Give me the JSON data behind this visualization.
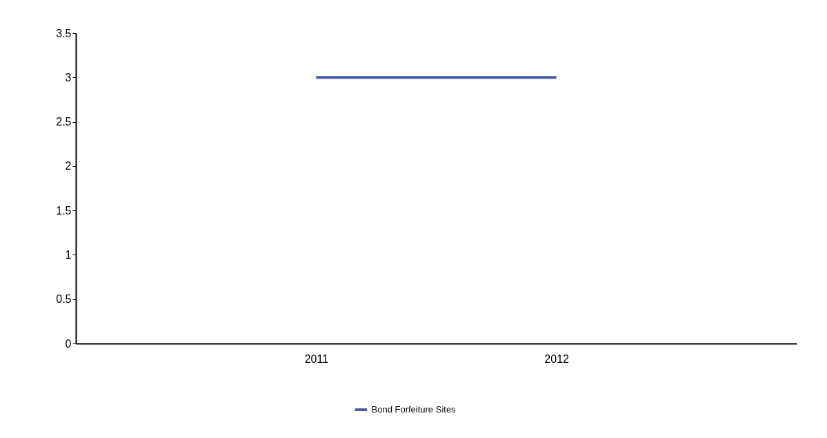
{
  "chart_data": {
    "type": "line",
    "categories": [
      "2011",
      "2012"
    ],
    "series": [
      {
        "name": "Bond Forfeiture Sites",
        "color": "#4a5aa8",
        "values": [
          3,
          3
        ]
      }
    ],
    "ylim": [
      0,
      3.5
    ],
    "yticks": [
      0,
      0.5,
      1,
      1.5,
      2,
      2.5,
      3,
      3.5
    ],
    "grid": false,
    "legend": "bottom",
    "marker": "none",
    "line_style": "solid"
  }
}
